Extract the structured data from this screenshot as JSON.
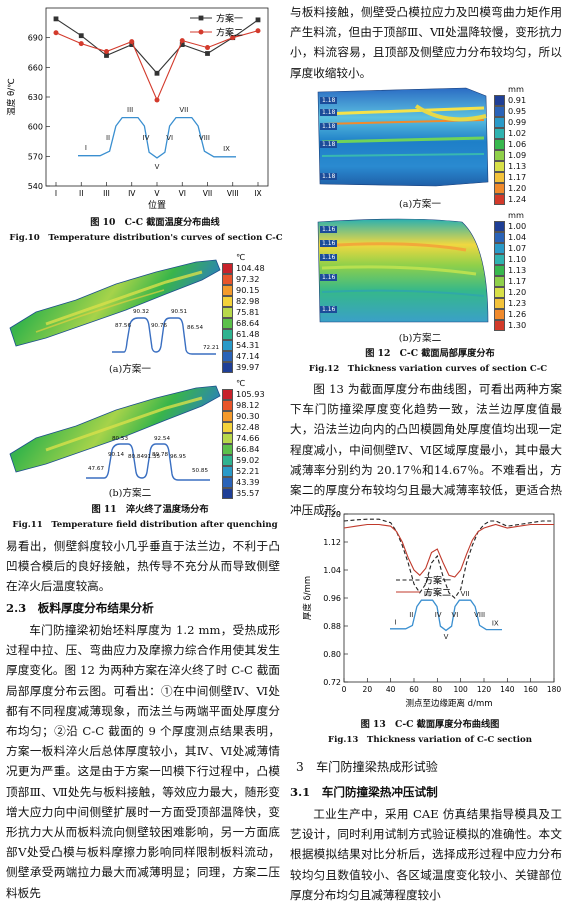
{
  "fig10": {
    "caption_cn": "图 10　C-C 截面温度分布曲线",
    "caption_en": "Fig.10　Temperature distribution's curves of section C-C",
    "ylabel": "温度 θ/℃",
    "xlabel": "位置",
    "inset_labels": [
      "I",
      "II",
      "III",
      "IV",
      "V",
      "VI",
      "VII",
      "VIII",
      "IX"
    ]
  },
  "fig11": {
    "caption_cn": "图 11　淬火终了温度场分布",
    "caption_en": "Fig.11　Temperature field distribution after quenching",
    "sub_a": "(a)方案一",
    "sub_b": "(b)方案二",
    "unit": "℃",
    "legend_a": [
      "104.48",
      "97.32",
      "90.15",
      "82.98",
      "75.81",
      "68.64",
      "61.48",
      "54.31",
      "47.14",
      "39.97"
    ],
    "legend_b": [
      "105.93",
      "98.12",
      "90.30",
      "82.48",
      "74.66",
      "66.84",
      "59.02",
      "52.21",
      "43.39",
      "35.57"
    ],
    "labels_a": [
      "87.56",
      "90.32",
      "90.76",
      "90.51",
      "86.54",
      "72.21"
    ],
    "labels_b": [
      "47.67",
      "80.53",
      "90.14",
      "80.84",
      "91.35",
      "92.54",
      "89.78",
      "96.95",
      "50.85"
    ]
  },
  "fig12": {
    "caption_cn": "图 12　C-C 截面局部厚度分布",
    "caption_en": "Fig.12　Thickness variation curves of section C-C",
    "sub_a": "(a)方案一",
    "sub_b": "(b)方案二",
    "unit": "mm",
    "legend_a": [
      "0.91",
      "0.95",
      "0.99",
      "1.02",
      "1.06",
      "1.09",
      "1.13",
      "1.17",
      "1.20",
      "1.24"
    ],
    "legend_b": [
      "1.00",
      "1.04",
      "1.07",
      "1.10",
      "1.13",
      "1.17",
      "1.20",
      "1.23",
      "1.26",
      "1.30"
    ],
    "tags_a": [
      "1.18",
      "1.18",
      "1.18",
      "1.18",
      "1.18"
    ],
    "tags_b": [
      "1.16",
      "1.16",
      "1.16",
      "1.16",
      "1.16"
    ]
  },
  "fig13": {
    "caption_cn": "图 13　C-C 截面厚度分布曲线图",
    "caption_en": "Fig.13　Thickness variation of C-C section",
    "ylabel": "厚度 δ/mm",
    "xlabel": "测点至边缘距离 d/mm",
    "inset_labels": [
      "I",
      "II",
      "III",
      "IV",
      "V",
      "VI",
      "VII",
      "VIII",
      "IX"
    ]
  },
  "text": {
    "right_top": "与板料接触，侧壁受凸模拉应力及凹模弯曲力矩作用产生料流，但由于顶部Ⅲ、Ⅶ处温降较慢，变形抗力小，料流容易，且顶部及侧壁应力分布较均匀，所以厚度收缩较小。",
    "right_mid": "图 13 为截面厚度分布曲线图，可看出两种方案下车门防撞梁厚度变化趋势一致，法兰边厚度值最大，沿法兰边向内的凸凹模圆角处厚度值均出现一定程度减小，中间侧壁Ⅳ、Ⅵ区域厚度最小，其中最大减薄率分别约为 20.17％和14.67％。不难看出，方案二的厚度分布较均匀且最大减薄率较低，更适合热冲压成形。",
    "left_a": "易看出，侧壁斜度较小几乎垂直于法兰边，不利于凸凹模合模后的良好接触，热传导不充分从而导致侧壁在淬火后温度较高。",
    "h_23": "2.3　板料厚度分布结果分析",
    "left_b": "车门防撞梁初始坯料厚度为 1.2 mm，受热成形过程中拉、压、弯曲应力及摩擦力综合作用使其发生厚度变化。图 12 为两种方案在淬火终了时 C-C 截面局部厚度分布云图。可看出：①在中间侧壁Ⅳ、Ⅵ处都有不同程度减薄现象，而法兰与两端平面处厚度分布均匀；②沿 C-C 截面的 9 个厚度测点结果表明，方案一板料淬火后总体厚度较小，其Ⅳ、Ⅵ处减薄情况更为严重。这是由于方案一凹模下行过程中，凸模顶部Ⅲ、Ⅶ处先与板料接触，等效应力最大，随形变增大应力向中间侧壁扩展时一方面受顶部温降快，变形抗力大从而板料流向侧壁较困难影响，另一方面底部Ⅴ处受凸模与板料摩擦力影响同样限制板料流动，侧壁承受两端拉力最大而减薄明显；同理，方案二压料板先",
    "h_3": "3　车门防撞梁热成形试验",
    "h_31": "3.1　车门防撞梁热冲压试制",
    "right_bot": "工业生产中，采用 CAE 仿真结果指导模具及工艺设计，同时利用试制方式验证模拟的准确性。本文根据模拟结果对比分析后，选择成形过程中应力分布较均匀且数值较小、各区域温度变化较小、关键部位厚度分布均匀且减薄程度较小"
  },
  "chart_data": [
    {
      "type": "line",
      "id": "fig10",
      "xlabel": "位置",
      "ylabel": "温度 θ/℃",
      "categories": [
        "I",
        "II",
        "III",
        "IV",
        "V",
        "VI",
        "VII",
        "VIII",
        "IX"
      ],
      "ylim": [
        540,
        720
      ],
      "yticks": [
        540,
        570,
        600,
        630,
        660,
        690
      ],
      "legend": "top-right",
      "series": [
        {
          "name": "方案一",
          "values": [
            709,
            692,
            672,
            683,
            654,
            683,
            674,
            690,
            708
          ],
          "color": "#333333",
          "marker": "square"
        },
        {
          "name": "方案二",
          "values": [
            695,
            684,
            676,
            686,
            627,
            687,
            680,
            690,
            697
          ],
          "color": "#d33a2c",
          "marker": "circle"
        }
      ]
    },
    {
      "type": "line",
      "id": "fig13",
      "xlabel": "测点至边缘距离 d/mm",
      "ylabel": "厚度 δ/mm",
      "xlim": [
        0,
        180
      ],
      "ylim": [
        0.72,
        1.2
      ],
      "xticks": [
        0,
        20,
        40,
        60,
        80,
        100,
        120,
        140,
        160,
        180
      ],
      "yticks": [
        0.72,
        0.8,
        0.88,
        0.96,
        1.04,
        1.12,
        1.2
      ],
      "legend": "center",
      "series": [
        {
          "name": "方案一",
          "style": "dashed",
          "color": "#222222",
          "x": [
            0,
            10,
            20,
            30,
            40,
            45,
            50,
            55,
            60,
            65,
            70,
            75,
            80,
            85,
            90,
            95,
            100,
            105,
            110,
            115,
            120,
            125,
            130,
            140,
            150,
            160,
            170,
            180
          ],
          "y": [
            1.18,
            1.183,
            1.185,
            1.185,
            1.175,
            1.15,
            1.11,
            1.06,
            1.0,
            0.975,
            1.0,
            1.06,
            1.08,
            1.02,
            0.975,
            0.96,
            0.985,
            1.06,
            1.11,
            1.15,
            1.17,
            1.18,
            1.18,
            1.165,
            1.17,
            1.175,
            1.18,
            1.18
          ]
        },
        {
          "name": "方案二",
          "style": "solid",
          "color": "#c0392b",
          "x": [
            0,
            10,
            20,
            30,
            40,
            45,
            50,
            55,
            60,
            65,
            70,
            75,
            80,
            85,
            90,
            95,
            100,
            105,
            110,
            115,
            120,
            125,
            130,
            140,
            150,
            160,
            170,
            180
          ],
          "y": [
            1.16,
            1.165,
            1.17,
            1.17,
            1.165,
            1.15,
            1.12,
            1.075,
            1.04,
            1.025,
            1.045,
            1.09,
            1.1,
            1.06,
            1.025,
            1.02,
            1.04,
            1.085,
            1.125,
            1.15,
            1.16,
            1.165,
            1.17,
            1.16,
            1.165,
            1.17,
            1.17,
            1.17
          ]
        }
      ]
    }
  ]
}
